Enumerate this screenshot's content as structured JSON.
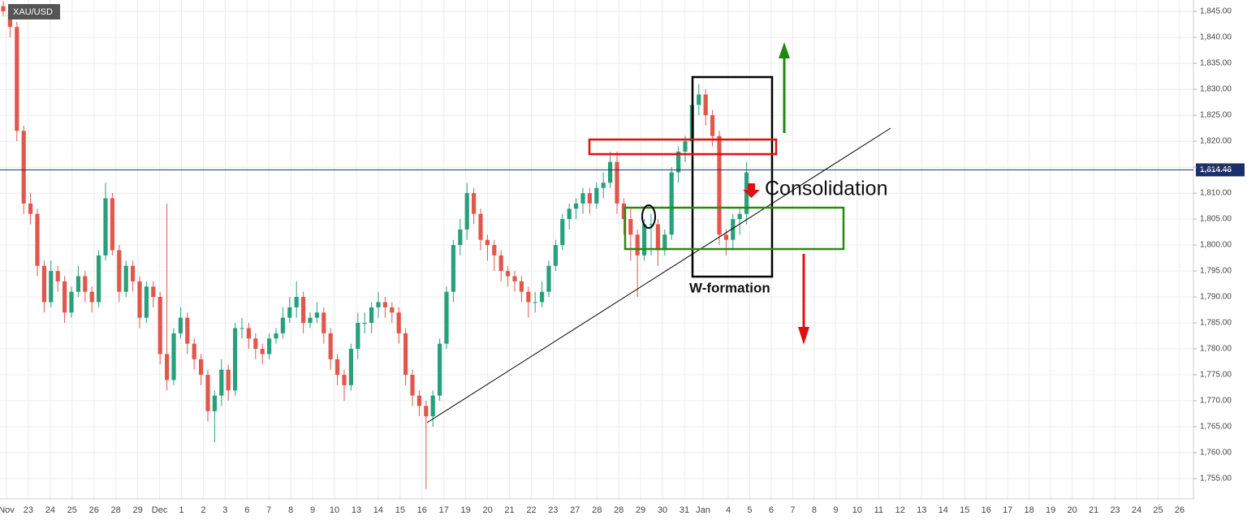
{
  "chart_data": {
    "type": "candlestick",
    "symbol": "XAU/USD",
    "up_color": "#26a17b",
    "down_color": "#e2574c",
    "grid": true,
    "ylim": [
      1751.1,
      1847.2
    ],
    "yticks": [
      {
        "value": 1755,
        "label": "1,755.00"
      },
      {
        "value": 1760,
        "label": "1,760.00"
      },
      {
        "value": 1765,
        "label": "1,765.00"
      },
      {
        "value": 1770,
        "label": "1,770.00"
      },
      {
        "value": 1775,
        "label": "1,775.00"
      },
      {
        "value": 1780,
        "label": "1,780.00"
      },
      {
        "value": 1785,
        "label": "1,785.00"
      },
      {
        "value": 1790,
        "label": "1,790.00"
      },
      {
        "value": 1795,
        "label": "1,795.00"
      },
      {
        "value": 1800,
        "label": "1,800.00"
      },
      {
        "value": 1805,
        "label": "1,805.00"
      },
      {
        "value": 1810,
        "label": "1,810.00"
      },
      {
        "value": 1815,
        "label": "1,815.00"
      },
      {
        "value": 1820,
        "label": "1,820.00"
      },
      {
        "value": 1825,
        "label": "1,825.00"
      },
      {
        "value": 1830,
        "label": "1,830.00"
      },
      {
        "value": 1835,
        "label": "1,835.00"
      },
      {
        "value": 1840,
        "label": "1,840.00"
      },
      {
        "value": 1845,
        "label": "1,845.00"
      }
    ],
    "current_price": {
      "value": 1814.48,
      "label": "1,814.48"
    },
    "x_labels": [
      "Nov",
      "23",
      "24",
      "25",
      "26",
      "28",
      "29",
      "Dec",
      "1",
      "2",
      "3",
      "6",
      "7",
      "8",
      "9",
      "10",
      "13",
      "14",
      "15",
      "16",
      "17",
      "19",
      "20",
      "21",
      "22",
      "23",
      "27",
      "28",
      "28",
      "29",
      "30",
      "31",
      "Jan",
      "4",
      "5",
      "6",
      "7",
      "8",
      "9",
      "10",
      "11",
      "12",
      "13",
      "14",
      "15",
      "16",
      "17",
      "18",
      "19",
      "20",
      "21",
      "23",
      "24",
      "25",
      "26"
    ],
    "open": [
      1846,
      1845,
      1842,
      1822,
      1808,
      1806,
      1796,
      1789,
      1795,
      1793,
      1787,
      1791,
      1794,
      1791,
      1789,
      1798,
      1809,
      1799,
      1791,
      1796,
      1793,
      1786,
      1792,
      1790,
      1779,
      1774,
      1783,
      1786,
      1781,
      1778,
      1775,
      1768,
      1771,
      1776,
      1772,
      1784,
      1784,
      1782,
      1780,
      1779,
      1782,
      1783,
      1786,
      1788,
      1790,
      1785,
      1786,
      1787,
      1783,
      1778,
      1775,
      1773,
      1780,
      1785,
      1785,
      1788,
      1789,
      1788,
      1787,
      1783,
      1775,
      1771,
      1769,
      1767,
      1771,
      1781,
      1791,
      1800,
      1803,
      1810,
      1806,
      1801,
      1800,
      1798,
      1795,
      1794,
      1793,
      1791,
      1789,
      1789,
      1791,
      1796,
      1800,
      1805,
      1807,
      1808,
      1810,
      1808,
      1811,
      1812,
      1816,
      1808,
      1805,
      1802,
      1798,
      1804,
      1804,
      1799,
      1802,
      1814,
      1818,
      1820,
      1827,
      1829,
      1825,
      1821,
      1802,
      1801,
      1805,
      1806
    ],
    "high": [
      1847,
      1846,
      1843,
      1823,
      1810,
      1807,
      1797,
      1797,
      1796,
      1794,
      1792,
      1796,
      1795,
      1792,
      1799,
      1812,
      1810,
      1800,
      1797,
      1797,
      1794,
      1793,
      1793,
      1791,
      1808,
      1784,
      1788,
      1787,
      1782,
      1779,
      1776,
      1772,
      1778,
      1777,
      1785,
      1786,
      1785,
      1783,
      1781,
      1783,
      1784,
      1788,
      1790,
      1793,
      1791,
      1787,
      1789,
      1788,
      1784,
      1779,
      1776,
      1781,
      1787,
      1787,
      1789,
      1791,
      1790,
      1789,
      1788,
      1784,
      1776,
      1772,
      1770,
      1772,
      1782,
      1792,
      1801,
      1805,
      1812,
      1811,
      1807,
      1802,
      1801,
      1799,
      1796,
      1795,
      1794,
      1792,
      1791,
      1793,
      1797,
      1801,
      1806,
      1808,
      1809,
      1811,
      1811,
      1812,
      1814,
      1818,
      1818,
      1809,
      1807,
      1803,
      1805,
      1806,
      1805,
      1803,
      1815,
      1819,
      1821,
      1829,
      1831,
      1830,
      1826,
      1822,
      1803,
      1806,
      1807,
      1816
    ],
    "low": [
      1844,
      1840,
      1820,
      1806,
      1804,
      1794,
      1787,
      1788,
      1791,
      1785,
      1786,
      1790,
      1789,
      1787,
      1788,
      1797,
      1798,
      1789,
      1790,
      1791,
      1784,
      1785,
      1788,
      1777,
      1772,
      1773,
      1782,
      1779,
      1776,
      1773,
      1766,
      1762,
      1769,
      1770,
      1771,
      1782,
      1780,
      1778,
      1777,
      1778,
      1781,
      1782,
      1785,
      1786,
      1783,
      1784,
      1785,
      1781,
      1776,
      1773,
      1770,
      1772,
      1778,
      1783,
      1783,
      1786,
      1786,
      1785,
      1781,
      1773,
      1769,
      1767,
      1753,
      1765,
      1770,
      1780,
      1789,
      1798,
      1801,
      1804,
      1799,
      1797,
      1795,
      1793,
      1792,
      1791,
      1789,
      1786,
      1787,
      1788,
      1790,
      1795,
      1799,
      1803,
      1805,
      1806,
      1806,
      1807,
      1809,
      1811,
      1806,
      1802,
      1797,
      1790,
      1797,
      1798,
      1796,
      1798,
      1801,
      1812,
      1816,
      1819,
      1825,
      1823,
      1819,
      1800,
      1798,
      1799,
      1802,
      1804
    ],
    "close": [
      1845,
      1842,
      1822,
      1808,
      1806,
      1796,
      1789,
      1795,
      1793,
      1787,
      1791,
      1794,
      1791,
      1789,
      1798,
      1809,
      1799,
      1791,
      1796,
      1793,
      1786,
      1792,
      1790,
      1779,
      1774,
      1783,
      1786,
      1781,
      1778,
      1775,
      1768,
      1771,
      1776,
      1772,
      1784,
      1784,
      1782,
      1780,
      1779,
      1782,
      1783,
      1786,
      1788,
      1790,
      1785,
      1786,
      1787,
      1783,
      1778,
      1775,
      1773,
      1780,
      1785,
      1785,
      1788,
      1789,
      1788,
      1787,
      1783,
      1775,
      1771,
      1769,
      1767,
      1771,
      1781,
      1791,
      1800,
      1803,
      1810,
      1806,
      1801,
      1800,
      1798,
      1795,
      1794,
      1793,
      1791,
      1789,
      1789,
      1791,
      1796,
      1800,
      1805,
      1807,
      1808,
      1810,
      1808,
      1811,
      1812,
      1816,
      1808,
      1805,
      1802,
      1798,
      1804,
      1804,
      1799,
      1802,
      1814,
      1818,
      1820,
      1827,
      1829,
      1825,
      1821,
      1802,
      1801,
      1805,
      1806,
      1814
    ],
    "annotations": {
      "consolidation": "Consolidation",
      "w_formation": "W-formation"
    }
  }
}
